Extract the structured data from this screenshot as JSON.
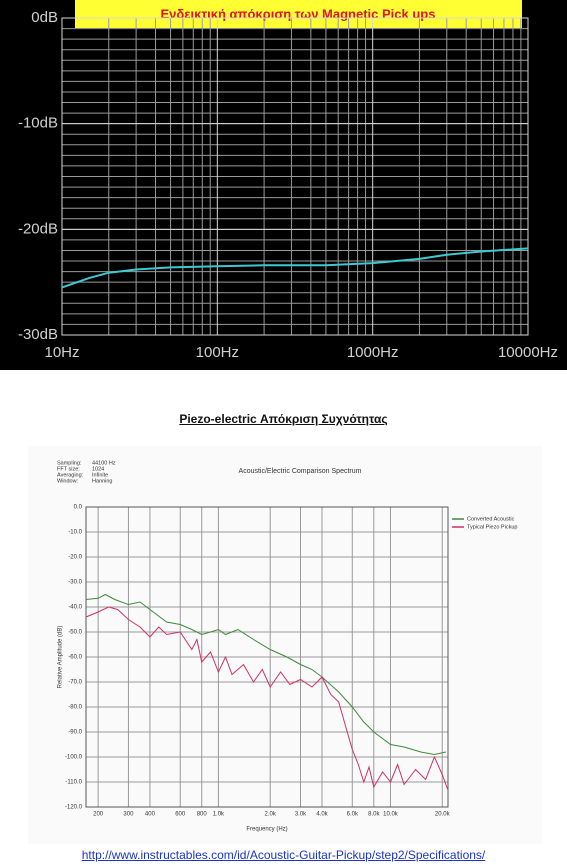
{
  "heading": "Piezo-electric Απόκριση Συχνότητας",
  "link": "http://www.instructables.com/id/Acoustic-Guitar-Pickup/step2/Specifications/",
  "chart_data": [
    {
      "type": "line",
      "title": "Ενδεικτική απόκριση των Magnetic Pick ups",
      "x": [
        10,
        15,
        20,
        30,
        50,
        100,
        200,
        500,
        1000,
        2000,
        3000,
        5000,
        10000
      ],
      "values": [
        -25.5,
        -24.6,
        -24.1,
        -23.8,
        -23.6,
        -23.5,
        -23.4,
        -23.4,
        -23.2,
        -22.8,
        -22.4,
        -22.1,
        -21.8
      ],
      "color": "#3ec8d0",
      "xscale": "log",
      "grid": true,
      "minor_grid": true,
      "xlim": [
        10,
        10000
      ],
      "xticks": [
        {
          "value": 10,
          "label": "10Hz"
        },
        {
          "value": 100,
          "label": "100Hz"
        },
        {
          "value": 1000,
          "label": "1000Hz"
        },
        {
          "value": 10000,
          "label": "10000Hz"
        }
      ],
      "ylim": [
        -30,
        0
      ],
      "yticks": [
        {
          "value": 0,
          "label": "0dB"
        },
        {
          "value": -10,
          "label": "-10dB"
        },
        {
          "value": -20,
          "label": "-20dB"
        },
        {
          "value": -30,
          "label": "-30dB"
        }
      ]
    },
    {
      "type": "line",
      "title": "Acoustic/Electric Comparison Spectrum",
      "info": [
        [
          "Sampling:",
          "44100 Hz"
        ],
        [
          "FFT size:",
          "1024"
        ],
        [
          "Averaging:",
          "Infinite"
        ],
        [
          "Window:",
          "Hanning"
        ]
      ],
      "xlabel": "Frequency (Hz)",
      "ylabel": "Relative Amplitude (dB)",
      "xscale": "log",
      "grid": true,
      "minor_grid": false,
      "legend": "top-right",
      "xlim": [
        170,
        21600
      ],
      "xticks": [
        200,
        300,
        400,
        600,
        800,
        {
          "value": 1000,
          "label": "1.0k"
        },
        {
          "value": 2000,
          "label": "2.0k"
        },
        {
          "value": 3000,
          "label": "3.0k"
        },
        {
          "value": 4000,
          "label": "4.0k"
        },
        {
          "value": 6000,
          "label": "6.0k"
        },
        {
          "value": 8000,
          "label": "8.0k"
        },
        {
          "value": 10000,
          "label": "10.0k"
        },
        {
          "value": 20000,
          "label": "20.0k"
        }
      ],
      "ylim": [
        -120,
        0
      ],
      "yticks": [
        {
          "value": 0,
          "label": "0.0"
        },
        {
          "value": -10,
          "label": "-10.0"
        },
        {
          "value": -20,
          "label": "-20.0"
        },
        {
          "value": -30,
          "label": "-30.0"
        },
        {
          "value": -40,
          "label": "-40.0"
        },
        {
          "value": -50,
          "label": "-50.0"
        },
        {
          "value": -60,
          "label": "-60.0"
        },
        {
          "value": -70,
          "label": "-70.0"
        },
        {
          "value": -80,
          "label": "-80.0"
        },
        {
          "value": -90,
          "label": "-90.0"
        },
        {
          "value": -100,
          "label": "-100.0"
        },
        {
          "value": -110,
          "label": "-110.0"
        },
        {
          "value": -120,
          "label": "-120.0"
        }
      ],
      "series": [
        {
          "name": "Converted Acoustic",
          "color": "#3f8a3a",
          "x": [
            170,
            200,
            220,
            250,
            300,
            350,
            400,
            500,
            600,
            700,
            800,
            900,
            1000,
            1100,
            1300,
            1600,
            2000,
            2500,
            3000,
            3500,
            4000,
            5000,
            6000,
            7000,
            8000,
            10000,
            12000,
            15000,
            18000,
            21000
          ],
          "values": [
            -37,
            -36.5,
            -35,
            -37,
            -39,
            -38,
            -41,
            -46,
            -47,
            -49,
            -51,
            -50,
            -49,
            -51,
            -49,
            -53,
            -57,
            -60,
            -63,
            -65,
            -68,
            -74,
            -80,
            -86,
            -90,
            -95,
            -96,
            -98,
            -99,
            -98
          ]
        },
        {
          "name": "Typical Piezo Pickup",
          "color": "#d0306a",
          "x": [
            170,
            200,
            230,
            260,
            300,
            350,
            400,
            450,
            500,
            600,
            700,
            750,
            800,
            900,
            1000,
            1100,
            1200,
            1400,
            1600,
            1800,
            2000,
            2300,
            2600,
            3000,
            3500,
            4000,
            4500,
            5000,
            5500,
            6000,
            6500,
            7000,
            7500,
            8000,
            9000,
            10000,
            11000,
            12000,
            14000,
            16000,
            18000,
            20000,
            21500
          ],
          "values": [
            -44,
            -42,
            -40,
            -41,
            -45,
            -48,
            -52,
            -48,
            -51,
            -50,
            -57,
            -53,
            -62,
            -58,
            -66,
            -60,
            -67,
            -63,
            -70,
            -65,
            -72,
            -66,
            -71,
            -69,
            -72,
            -68,
            -75,
            -78,
            -88,
            -97,
            -103,
            -110,
            -104,
            -112,
            -106,
            -110,
            -103,
            -111,
            -105,
            -109,
            -100,
            -107,
            -113
          ]
        }
      ]
    }
  ]
}
